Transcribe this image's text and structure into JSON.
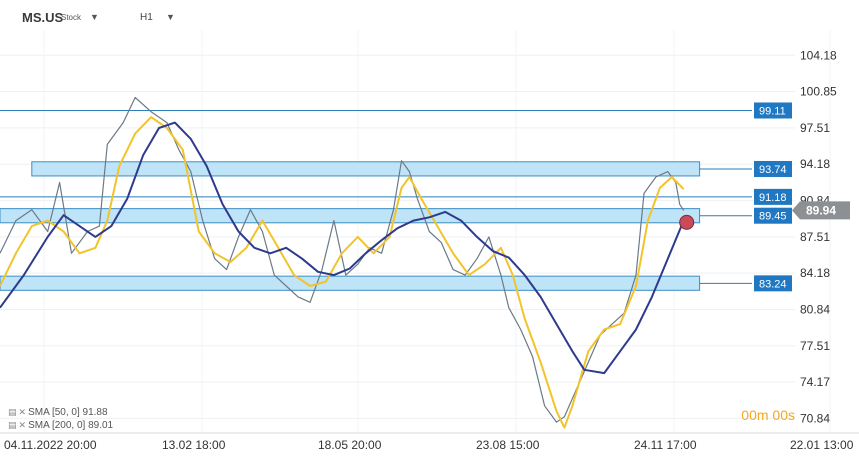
{
  "header": {
    "symbol": "MS.US",
    "asset_type": "Stock",
    "timeframe": "H1"
  },
  "legend": [
    {
      "label": "SMA [50, 0] 91.88",
      "color": "#f2c42a"
    },
    {
      "label": "SMA [200, 0] 89.01",
      "color": "#2e3a8c"
    }
  ],
  "timer": "00m 00s",
  "chart_data": {
    "type": "line",
    "price_axis": {
      "ticks": [
        "104.18",
        "100.85",
        "97.51",
        "94.18",
        "90.84",
        "87.51",
        "84.18",
        "80.84",
        "77.51",
        "74.17",
        "70.84"
      ],
      "ylim": [
        69.5,
        106.5
      ]
    },
    "time_axis": {
      "ticks": [
        "04.11.2022 20:00",
        "13.02 18:00",
        "18.05 20:00",
        "23.08 15:00",
        "24.11 17:00",
        "22.01 13:00"
      ],
      "xlim": [
        0,
        1
      ]
    },
    "current_price": {
      "label": "89.94",
      "value": 89.94
    },
    "horizontal_lines": [
      {
        "label": "99.11",
        "value": 99.11,
        "x_start": 0.0
      },
      {
        "label": "91.18",
        "value": 91.18,
        "x_start": 0.0
      }
    ],
    "zones": [
      {
        "label": "93.74",
        "value": 93.74,
        "x_start": 0.04,
        "x_end": 0.88,
        "lo": 93.1,
        "hi": 94.4
      },
      {
        "label": "89.45",
        "value": 89.45,
        "x_start": 0.0,
        "x_end": 0.88,
        "lo": 88.8,
        "hi": 90.1
      },
      {
        "label": "83.24",
        "value": 83.24,
        "x_start": 0.0,
        "x_end": 0.88,
        "lo": 82.6,
        "hi": 83.9
      }
    ],
    "series": [
      {
        "name": "SMA [50, 0] 91.88",
        "color": "#f2c42a",
        "points": [
          [
            0.0,
            83.0
          ],
          [
            0.02,
            86.0
          ],
          [
            0.04,
            88.5
          ],
          [
            0.06,
            89.0
          ],
          [
            0.08,
            88.0
          ],
          [
            0.1,
            86.0
          ],
          [
            0.12,
            86.5
          ],
          [
            0.135,
            89.0
          ],
          [
            0.15,
            94.0
          ],
          [
            0.17,
            97.0
          ],
          [
            0.19,
            98.5
          ],
          [
            0.21,
            97.5
          ],
          [
            0.23,
            95.5
          ],
          [
            0.25,
            88.0
          ],
          [
            0.27,
            86.0
          ],
          [
            0.29,
            85.2
          ],
          [
            0.31,
            86.5
          ],
          [
            0.33,
            89.0
          ],
          [
            0.35,
            86.5
          ],
          [
            0.37,
            84.0
          ],
          [
            0.39,
            83.0
          ],
          [
            0.41,
            83.4
          ],
          [
            0.43,
            86.0
          ],
          [
            0.45,
            87.5
          ],
          [
            0.47,
            86.0
          ],
          [
            0.49,
            87.5
          ],
          [
            0.505,
            92.0
          ],
          [
            0.515,
            93.0
          ],
          [
            0.53,
            91.0
          ],
          [
            0.55,
            88.5
          ],
          [
            0.57,
            86.0
          ],
          [
            0.59,
            84.0
          ],
          [
            0.61,
            85.0
          ],
          [
            0.63,
            86.5
          ],
          [
            0.645,
            84.0
          ],
          [
            0.66,
            80.0
          ],
          [
            0.68,
            76.0
          ],
          [
            0.7,
            71.5
          ],
          [
            0.71,
            70.0
          ],
          [
            0.72,
            72.0
          ],
          [
            0.74,
            77.0
          ],
          [
            0.76,
            79.0
          ],
          [
            0.78,
            79.5
          ],
          [
            0.8,
            83.0
          ],
          [
            0.815,
            89.0
          ],
          [
            0.83,
            92.0
          ],
          [
            0.845,
            93.0
          ],
          [
            0.86,
            91.88
          ]
        ]
      },
      {
        "name": "SMA [200, 0] 89.01",
        "color": "#2e3a8c",
        "points": [
          [
            0.0,
            81.0
          ],
          [
            0.03,
            84.0
          ],
          [
            0.06,
            87.5
          ],
          [
            0.08,
            89.5
          ],
          [
            0.1,
            88.5
          ],
          [
            0.12,
            87.5
          ],
          [
            0.14,
            88.5
          ],
          [
            0.16,
            91.0
          ],
          [
            0.18,
            95.0
          ],
          [
            0.2,
            97.5
          ],
          [
            0.22,
            98.0
          ],
          [
            0.24,
            96.5
          ],
          [
            0.26,
            94.0
          ],
          [
            0.28,
            90.5
          ],
          [
            0.3,
            88.0
          ],
          [
            0.32,
            86.5
          ],
          [
            0.34,
            86.0
          ],
          [
            0.36,
            86.5
          ],
          [
            0.38,
            85.5
          ],
          [
            0.4,
            84.3
          ],
          [
            0.42,
            84.0
          ],
          [
            0.44,
            84.6
          ],
          [
            0.46,
            86.0
          ],
          [
            0.48,
            87.2
          ],
          [
            0.5,
            88.3
          ],
          [
            0.52,
            89.0
          ],
          [
            0.54,
            89.3
          ],
          [
            0.56,
            89.8
          ],
          [
            0.58,
            89.0
          ],
          [
            0.6,
            87.5
          ],
          [
            0.62,
            86.2
          ],
          [
            0.64,
            85.6
          ],
          [
            0.66,
            84.0
          ],
          [
            0.68,
            82.0
          ],
          [
            0.7,
            79.5
          ],
          [
            0.72,
            77.0
          ],
          [
            0.735,
            75.3
          ],
          [
            0.76,
            75.0
          ],
          [
            0.78,
            77.0
          ],
          [
            0.8,
            79.0
          ],
          [
            0.82,
            82.0
          ],
          [
            0.84,
            85.5
          ],
          [
            0.86,
            89.01
          ]
        ]
      },
      {
        "name": "",
        "color": "#6b7a86",
        "points": [
          [
            0.0,
            86.0
          ],
          [
            0.02,
            89.0
          ],
          [
            0.04,
            90.0
          ],
          [
            0.06,
            88.0
          ],
          [
            0.075,
            92.5
          ],
          [
            0.09,
            86.0
          ],
          [
            0.11,
            88.0
          ],
          [
            0.125,
            88.5
          ],
          [
            0.135,
            96.0
          ],
          [
            0.155,
            98.0
          ],
          [
            0.17,
            100.3
          ],
          [
            0.19,
            99.0
          ],
          [
            0.21,
            98.0
          ],
          [
            0.225,
            95.5
          ],
          [
            0.24,
            93.5
          ],
          [
            0.255,
            89.0
          ],
          [
            0.27,
            85.5
          ],
          [
            0.285,
            84.5
          ],
          [
            0.3,
            87.5
          ],
          [
            0.315,
            90.0
          ],
          [
            0.33,
            88.0
          ],
          [
            0.345,
            84.0
          ],
          [
            0.36,
            83.0
          ],
          [
            0.375,
            82.0
          ],
          [
            0.39,
            81.5
          ],
          [
            0.405,
            84.5
          ],
          [
            0.42,
            89.0
          ],
          [
            0.435,
            84.0
          ],
          [
            0.45,
            85.0
          ],
          [
            0.465,
            86.5
          ],
          [
            0.48,
            86.0
          ],
          [
            0.495,
            90.0
          ],
          [
            0.505,
            94.5
          ],
          [
            0.515,
            93.5
          ],
          [
            0.525,
            91.0
          ],
          [
            0.54,
            88.0
          ],
          [
            0.555,
            87.0
          ],
          [
            0.57,
            84.5
          ],
          [
            0.585,
            84.0
          ],
          [
            0.6,
            85.5
          ],
          [
            0.615,
            87.5
          ],
          [
            0.63,
            84.0
          ],
          [
            0.64,
            81.0
          ],
          [
            0.655,
            79.0
          ],
          [
            0.67,
            76.5
          ],
          [
            0.685,
            72.0
          ],
          [
            0.7,
            70.5
          ],
          [
            0.71,
            71.0
          ],
          [
            0.725,
            73.5
          ],
          [
            0.74,
            76.0
          ],
          [
            0.755,
            78.5
          ],
          [
            0.77,
            79.5
          ],
          [
            0.785,
            80.5
          ],
          [
            0.8,
            84.0
          ],
          [
            0.81,
            91.5
          ],
          [
            0.825,
            93.0
          ],
          [
            0.84,
            93.5
          ],
          [
            0.85,
            92.5
          ],
          [
            0.855,
            90.5
          ],
          [
            0.86,
            89.94
          ]
        ]
      }
    ],
    "grid": true
  }
}
